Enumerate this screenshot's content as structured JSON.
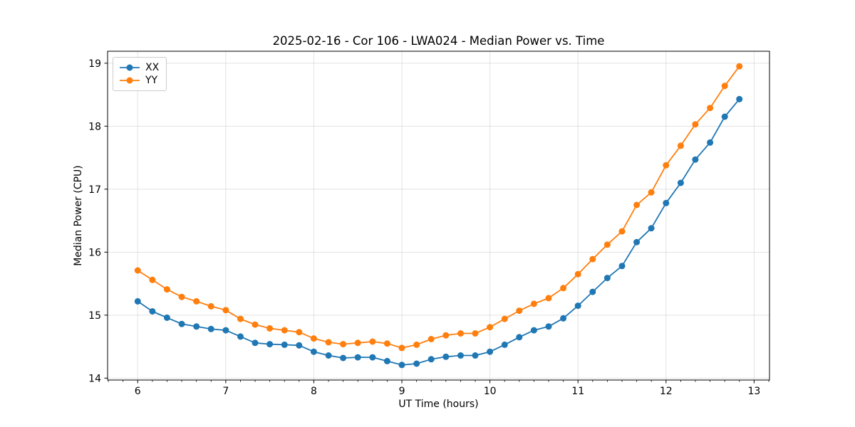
{
  "chart_data": {
    "type": "line",
    "title": "2025-02-16 - Cor 106 - LWA024 - Median Power vs. Time",
    "xlabel": "UT Time (hours)",
    "ylabel": "Median Power (CPU)",
    "x": [
      6.0,
      6.167,
      6.333,
      6.5,
      6.667,
      6.833,
      7.0,
      7.167,
      7.333,
      7.5,
      7.667,
      7.833,
      8.0,
      8.167,
      8.333,
      8.5,
      8.667,
      8.833,
      9.0,
      9.167,
      9.333,
      9.5,
      9.667,
      9.833,
      10.0,
      10.167,
      10.333,
      10.5,
      10.667,
      10.833,
      11.0,
      11.167,
      11.333,
      11.5,
      11.667,
      11.833,
      12.0,
      12.167,
      12.333,
      12.5,
      12.667,
      12.833
    ],
    "series": [
      {
        "name": "XX",
        "color": "#1f77b4",
        "values": [
          15.22,
          15.06,
          14.96,
          14.86,
          14.82,
          14.78,
          14.76,
          14.66,
          14.56,
          14.54,
          14.53,
          14.52,
          14.42,
          14.36,
          14.32,
          14.33,
          14.33,
          14.27,
          14.21,
          14.23,
          14.3,
          14.34,
          14.36,
          14.36,
          14.42,
          14.53,
          14.65,
          14.76,
          14.82,
          14.95,
          15.15,
          15.37,
          15.59,
          15.78,
          16.16,
          16.38,
          16.78,
          17.1,
          17.47,
          17.74,
          18.15,
          18.43
        ]
      },
      {
        "name": "YY",
        "color": "#ff7f0e",
        "values": [
          15.71,
          15.56,
          15.41,
          15.29,
          15.22,
          15.14,
          15.08,
          14.94,
          14.85,
          14.79,
          14.76,
          14.73,
          14.63,
          14.57,
          14.54,
          14.56,
          14.58,
          14.55,
          14.48,
          14.53,
          14.62,
          14.68,
          14.71,
          14.71,
          14.81,
          14.94,
          15.07,
          15.18,
          15.27,
          15.43,
          15.65,
          15.89,
          16.12,
          16.33,
          16.75,
          16.95,
          17.38,
          17.69,
          18.03,
          18.29,
          18.64,
          18.95
        ]
      }
    ],
    "xlim": [
      5.658,
      13.175
    ],
    "ylim": [
      13.97,
      19.19
    ],
    "xticks": [
      6,
      7,
      8,
      9,
      10,
      11,
      12,
      13
    ],
    "yticks": [
      14,
      15,
      16,
      17,
      18,
      19
    ],
    "x_minor_step": 0.16667,
    "grid": true,
    "grid_color": "#cccccc",
    "spine_color": "#000000",
    "legend_position": "upper left",
    "marker": "circle"
  }
}
